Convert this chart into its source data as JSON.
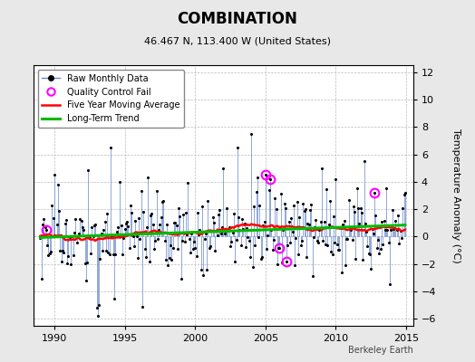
{
  "title": "COMBINATION",
  "subtitle": "46.467 N, 113.400 W (United States)",
  "ylabel": "Temperature Anomaly (°C)",
  "watermark": "Berkeley Earth",
  "xlim": [
    1988.5,
    2015.5
  ],
  "ylim": [
    -6.5,
    12.5
  ],
  "yticks": [
    -6,
    -4,
    -2,
    0,
    2,
    4,
    6,
    8,
    10,
    12
  ],
  "xticks": [
    1990,
    1995,
    2000,
    2005,
    2010,
    2015
  ],
  "bg_color": "#e8e8e8",
  "plot_bg": "#ffffff",
  "stem_color": "#6688cc",
  "dot_color": "#000000",
  "ma_color": "#ff0000",
  "trend_color": "#00bb00",
  "qc_color": "#ff00ff",
  "seed": 17
}
